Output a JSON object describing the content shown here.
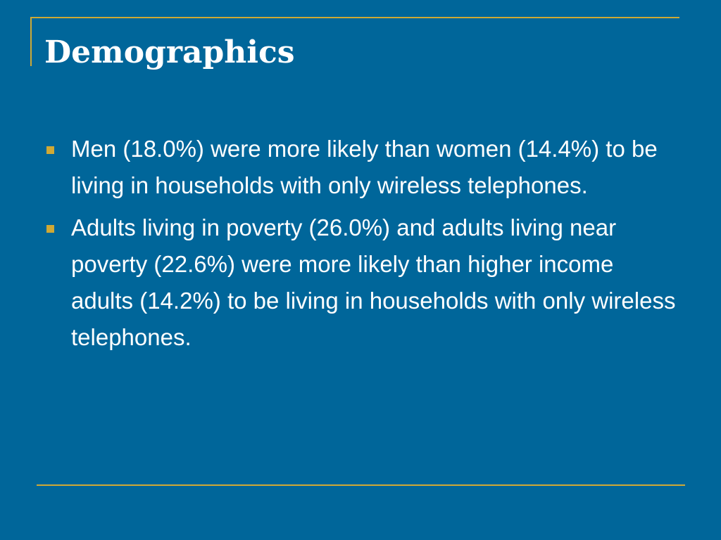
{
  "slide": {
    "title": "Demographics",
    "bullets": [
      "Men (18.0%) were more likely than women (14.4%) to be living in households with only wireless telephones.",
      "Adults living in poverty (26.0%) and adults living near poverty (22.6%) were more likely than higher income adults (14.2%) to be living in households with only wireless telephones."
    ]
  },
  "theme": {
    "background": "#00669a",
    "accent": "#cfa935",
    "text": "#ffffff",
    "bullet_marker_icon": "square-bullet-icon"
  }
}
